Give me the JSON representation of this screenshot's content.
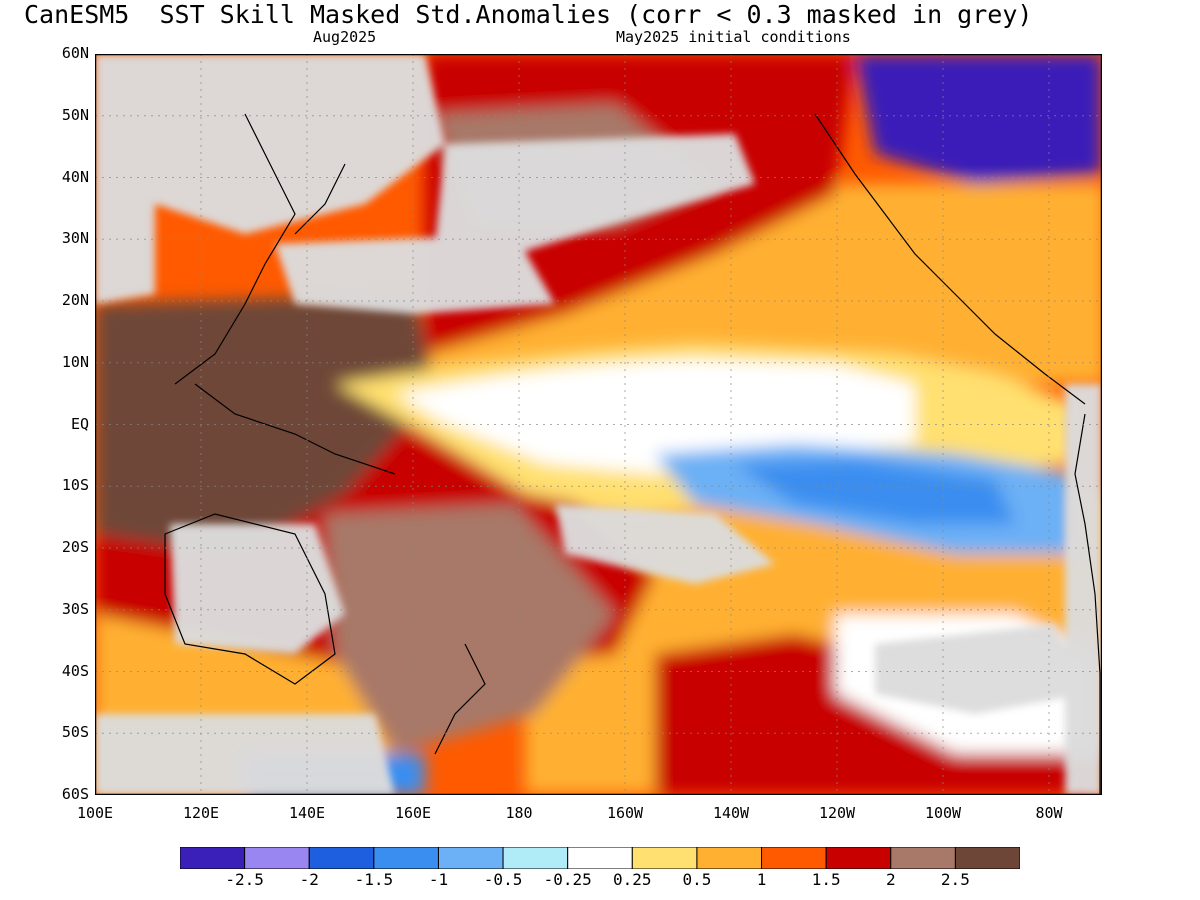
{
  "header": {
    "title": "CanESM5  SST Skill Masked Std.Anomalies (corr < 0.3 masked in grey)",
    "valid_month": "Aug2025",
    "init_info": "May2025 initial conditions"
  },
  "map": {
    "lat_labels": [
      "60N",
      "50N",
      "40N",
      "30N",
      "20N",
      "10N",
      "EQ",
      "10S",
      "20S",
      "30S",
      "40S",
      "50S",
      "60S"
    ],
    "lon_labels": [
      "100E",
      "120E",
      "140E",
      "160E",
      "180",
      "160W",
      "140W",
      "120W",
      "100W",
      "80W"
    ],
    "mask_color": "#dcdcdc",
    "land_outline_color": "#000000"
  },
  "colorbar": {
    "colors": [
      "#3a1fb8",
      "#9a86f0",
      "#1e5fe0",
      "#3a8ef0",
      "#6cb0f5",
      "#b0ecf8",
      "#ffffff",
      "#ffe070",
      "#ffb030",
      "#ff5a00",
      "#c80000",
      "#a87868",
      "#6e4638"
    ],
    "labels": [
      "-2.5",
      "-2",
      "-1.5",
      "-1",
      "-0.5",
      "-0.25",
      "0.25",
      "0.5",
      "1",
      "1.5",
      "2",
      "2.5"
    ]
  }
}
